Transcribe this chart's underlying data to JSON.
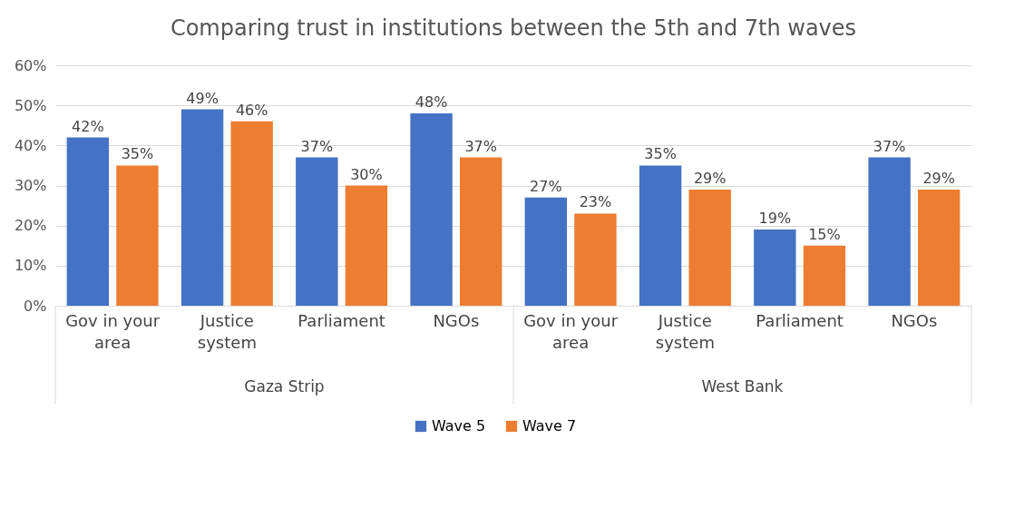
{
  "chart_data": {
    "type": "bar",
    "title": "Comparing trust in institutions between the 5th and 7th waves",
    "categories": [
      "Gov in your area",
      "Justice system",
      "Parliament",
      "NGOs",
      "Gov in your area",
      "Justice system",
      "Parliament",
      "NGOs"
    ],
    "series": [
      {
        "name": "Wave 5",
        "color": "#4472c4",
        "values": [
          42,
          49,
          37,
          48,
          27,
          35,
          19,
          37
        ],
        "value_labels": [
          "42%",
          "49%",
          "37%",
          "48%",
          "27%",
          "35%",
          "19%",
          "37%"
        ]
      },
      {
        "name": "Wave 7",
        "color": "#ed7d31",
        "values": [
          35,
          46,
          30,
          37,
          23,
          29,
          15,
          29
        ],
        "value_labels": [
          "35%",
          "46%",
          "30%",
          "37%",
          "23%",
          "29%",
          "15%",
          "29%"
        ]
      }
    ],
    "ylim": [
      0,
      60
    ],
    "yticks": [
      {
        "value": 0,
        "label": "0%"
      },
      {
        "value": 10,
        "label": "10%"
      },
      {
        "value": 20,
        "label": "20%"
      },
      {
        "value": 30,
        "label": "30%"
      },
      {
        "value": 40,
        "label": "40%"
      },
      {
        "value": 50,
        "label": "50%"
      },
      {
        "value": 60,
        "label": "60%"
      }
    ],
    "grid": "y",
    "legend": "bottom",
    "annotations": [
      "Gaza Strip",
      "West Bank"
    ]
  }
}
